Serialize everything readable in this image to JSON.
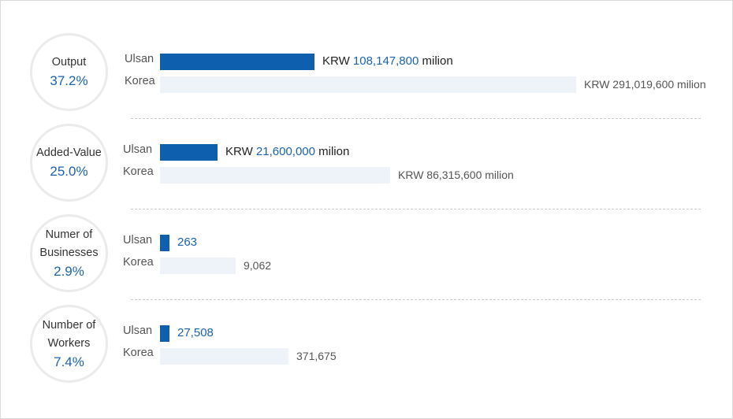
{
  "chart_data": {
    "type": "bar",
    "row_labels": [
      "Ulsan",
      "Korea"
    ],
    "metrics": [
      {
        "label_lines": [
          "Output"
        ],
        "share": "37.2%",
        "ulsan": {
          "value": 108147800,
          "prefix": "KRW ",
          "number": "108,147,800",
          "suffix": " milion"
        },
        "korea": {
          "value": 291019600,
          "text": "KRW 291,019,600 milion"
        }
      },
      {
        "label_lines": [
          "Added-Value"
        ],
        "share": "25.0%",
        "ulsan": {
          "value": 21600000,
          "prefix": "KRW ",
          "number": "21,600,000",
          "suffix": " milion"
        },
        "korea": {
          "value": 86315600,
          "text": "KRW 86,315,600 milion"
        }
      },
      {
        "label_lines": [
          "Numer of",
          "Businesses"
        ],
        "share": "2.9%",
        "ulsan": {
          "value": 263,
          "prefix": "",
          "number": "263",
          "suffix": ""
        },
        "korea": {
          "value": 9062,
          "text": "9,062"
        }
      },
      {
        "label_lines": [
          "Number of",
          "Workers"
        ],
        "share": "7.4%",
        "ulsan": {
          "value": 27508,
          "prefix": "",
          "number": "27,508",
          "suffix": ""
        },
        "korea": {
          "value": 371675,
          "text": "371,675"
        }
      }
    ],
    "colors": {
      "ulsan_bar": "#0f5faf",
      "korea_bar": "#edf3f9",
      "accent_text": "#1b63ad"
    }
  }
}
